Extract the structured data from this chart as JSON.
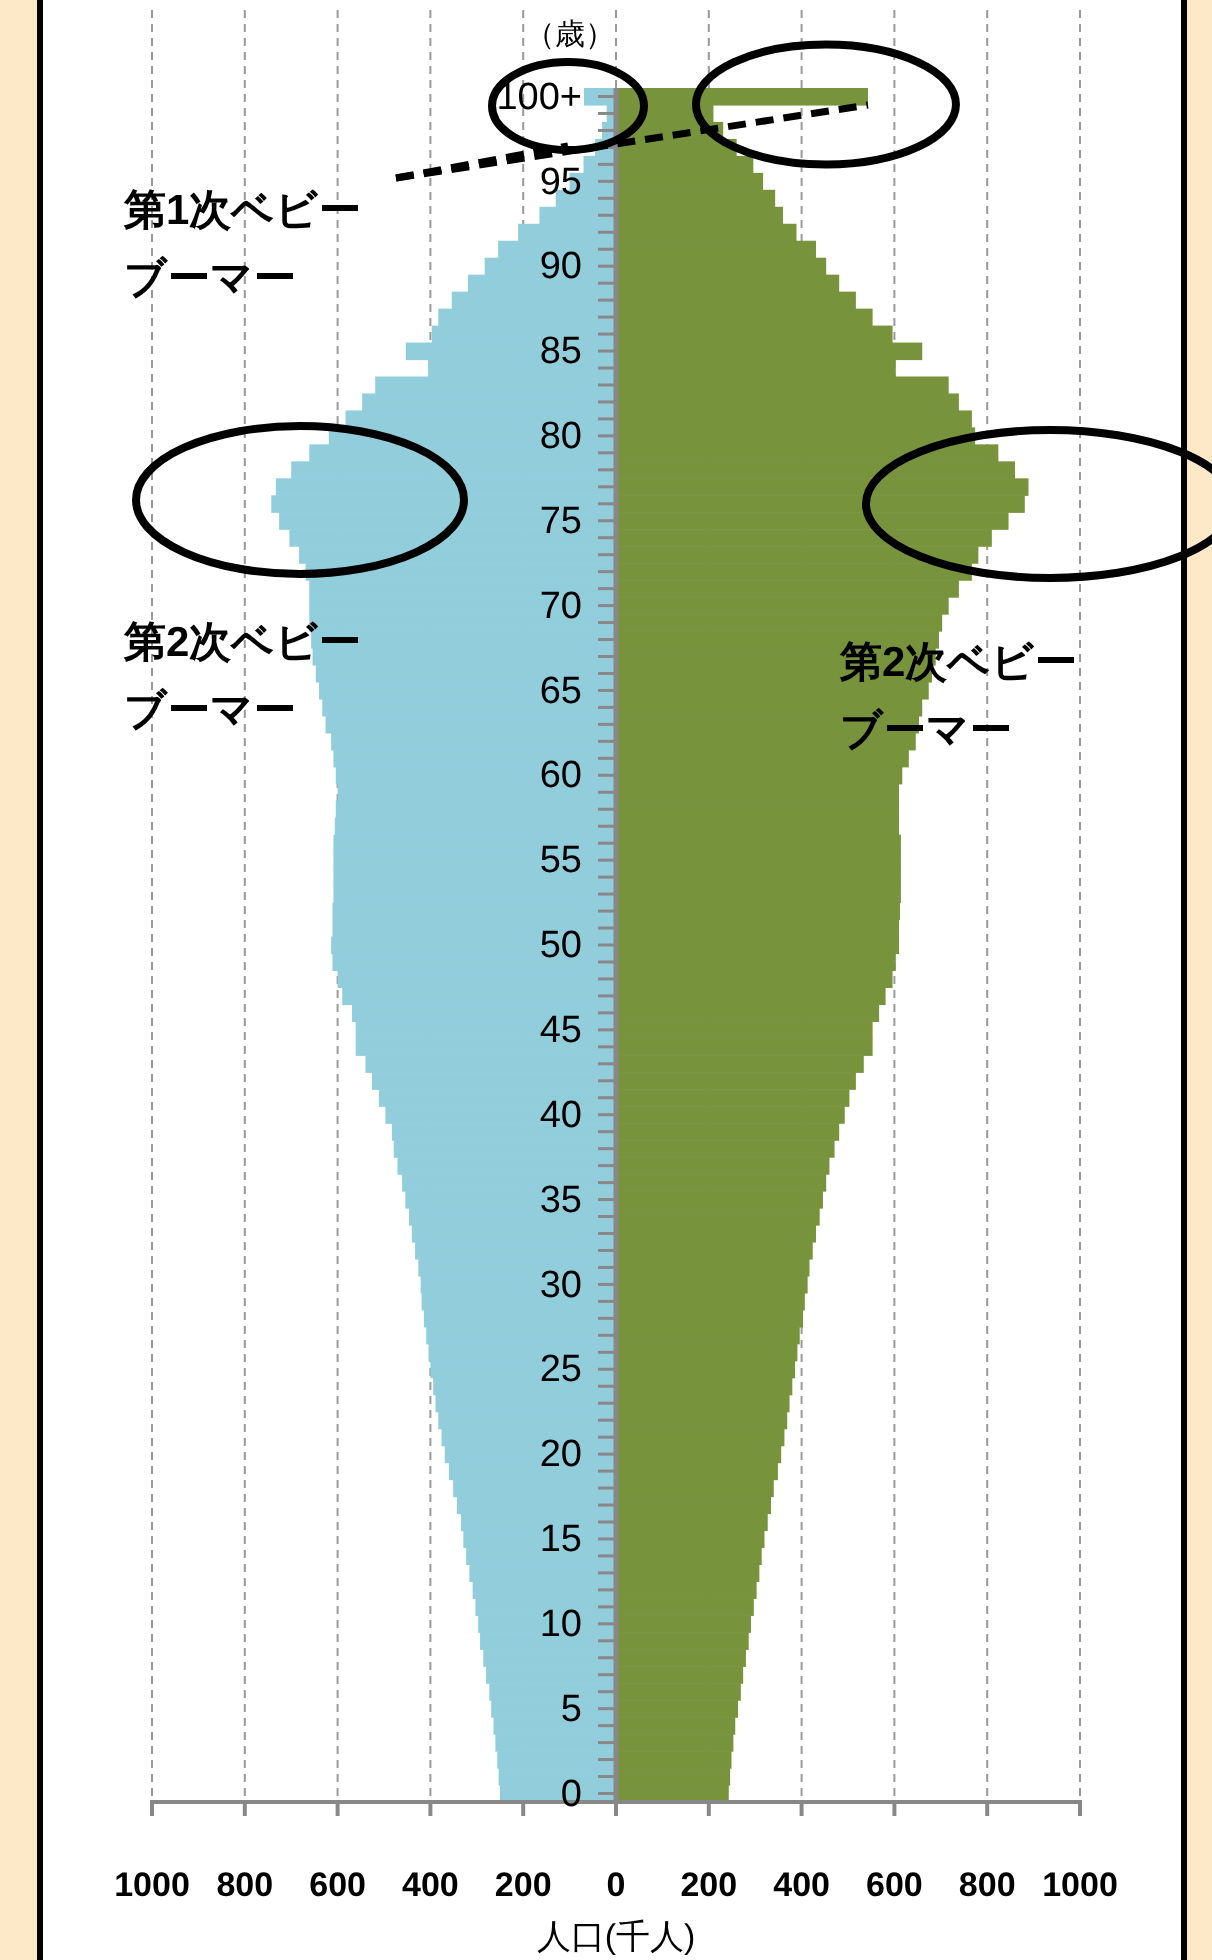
{
  "chart_data": {
    "type": "bar",
    "orientation": "horizontal",
    "stacked": true,
    "ylabel": "（歳）",
    "xlabel": "人口(千人)",
    "categories": [
      "100+",
      null,
      null,
      null,
      null,
      "95",
      null,
      null,
      null,
      null,
      "90",
      null,
      null,
      null,
      null,
      "85",
      null,
      null,
      null,
      null,
      "80",
      null,
      null,
      null,
      null,
      "75",
      null,
      null,
      null,
      null,
      "70",
      null,
      null,
      null,
      null,
      "65",
      null,
      null,
      null,
      null,
      "60",
      null,
      null,
      null,
      null,
      "55",
      null,
      null,
      null,
      null,
      "50",
      null,
      null,
      null,
      null,
      "45",
      null,
      null,
      null,
      null,
      "40",
      null,
      null,
      null,
      null,
      "35",
      null,
      null,
      null,
      null,
      "30",
      null,
      null,
      null,
      null,
      "25",
      null,
      null,
      null,
      null,
      "20",
      null,
      null,
      null,
      null,
      "15",
      null,
      null,
      null,
      null,
      "10",
      null,
      null,
      null,
      null,
      "5",
      null,
      null,
      null,
      null,
      "0"
    ],
    "series": [
      {
        "color": "#92cddc",
        "values": [
          -69,
          -20,
          -30,
          -45,
          -70,
          -100,
          -130,
          -165,
          -211,
          -254,
          -283,
          -319,
          -354,
          -383,
          -397,
          -453,
          -405,
          -519,
          -547,
          -583,
          -619,
          -661,
          -700,
          -733,
          -743,
          -726,
          -704,
          -683,
          -669,
          -661,
          -661,
          -661,
          -657,
          -654,
          -647,
          -640,
          -633,
          -626,
          -614,
          -609,
          -604,
          -600,
          -604,
          -606,
          -609,
          -609,
          -609,
          -609,
          -611,
          -611,
          -614,
          -611,
          -600,
          -590,
          -569,
          -561,
          -561,
          -540,
          -526,
          -511,
          -497,
          -483,
          -479,
          -471,
          -461,
          -454,
          -446,
          -440,
          -433,
          -426,
          -421,
          -419,
          -414,
          -409,
          -404,
          -400,
          -394,
          -389,
          -383,
          -376,
          -369,
          -360,
          -351,
          -343,
          -334,
          -329,
          -323,
          -316,
          -309,
          -303,
          -297,
          -293,
          -286,
          -280,
          -273,
          -269,
          -264,
          -260,
          -256,
          -253,
          -250
        ]
      },
      {
        "color": "#77933c",
        "values": [
          543,
          210,
          231,
          260,
          296,
          317,
          343,
          360,
          389,
          431,
          453,
          481,
          517,
          553,
          596,
          660,
          603,
          717,
          739,
          767,
          774,
          824,
          860,
          889,
          881,
          846,
          810,
          781,
          767,
          739,
          717,
          703,
          696,
          689,
          681,
          674,
          660,
          653,
          646,
          631,
          617,
          610,
          610,
          610,
          614,
          614,
          614,
          614,
          612,
          610,
          610,
          603,
          596,
          581,
          567,
          553,
          553,
          534,
          517,
          503,
          493,
          481,
          471,
          460,
          453,
          446,
          439,
          431,
          424,
          417,
          413,
          407,
          403,
          396,
          391,
          386,
          380,
          374,
          369,
          363,
          356,
          349,
          340,
          334,
          327,
          320,
          314,
          309,
          303,
          297,
          291,
          286,
          280,
          274,
          269,
          263,
          257,
          253,
          249,
          246,
          243
        ]
      }
    ],
    "xlim": [
      -1000,
      1000
    ],
    "xticks": [
      {
        "value": -1000,
        "label": "1000"
      },
      {
        "value": -800,
        "label": "800"
      },
      {
        "value": -600,
        "label": "600"
      },
      {
        "value": -400,
        "label": "400"
      },
      {
        "value": -200,
        "label": "200"
      },
      0,
      200,
      400,
      600,
      800,
      1000
    ],
    "grid": "x",
    "annotations": [
      {
        "text": "第1次ベビーブーマー",
        "x": 543,
        "y": "100+"
      },
      "第2次ベビーブーマー",
      "第2次ベビーブーマー"
    ]
  }
}
